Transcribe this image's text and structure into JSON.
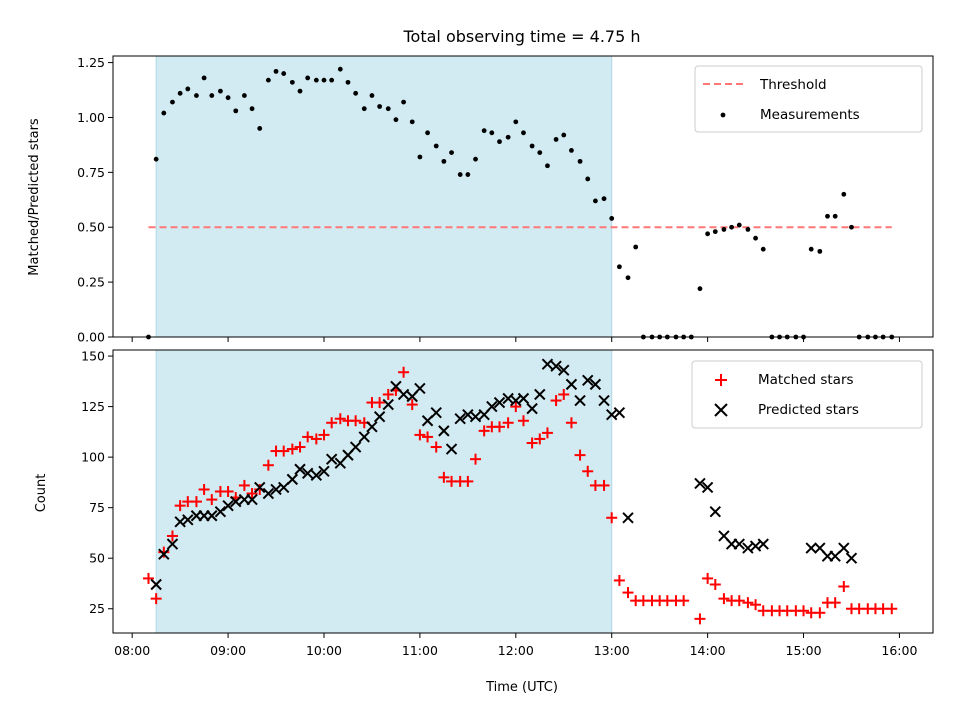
{
  "title": "Total observing time = 4.75 h",
  "colors": {
    "shade": "#add8e6",
    "threshold": "#ff7777",
    "measurement": "#000000",
    "matched": "#ff0000",
    "predicted": "#000000"
  },
  "x_ticks": [
    "08:00",
    "09:00",
    "10:00",
    "11:00",
    "12:00",
    "13:00",
    "14:00",
    "15:00",
    "16:00"
  ],
  "chart_data": [
    {
      "type": "scatter",
      "panel": "top",
      "ylabel": "Matched/Predicted stars",
      "xlabel": "",
      "xlim_hours": [
        7.8,
        16.35
      ],
      "ylim": [
        0,
        1.28
      ],
      "y_ticks": [
        0.0,
        0.25,
        0.5,
        0.75,
        1.0,
        1.25
      ],
      "y_tick_labels": [
        "0.00",
        "0.25",
        "0.50",
        "0.75",
        "1.00",
        "1.25"
      ],
      "shaded_span_hours": [
        8.25,
        13.0
      ],
      "threshold": {
        "label": "Threshold",
        "value": 0.5,
        "x_range_hours": [
          8.17,
          15.92
        ]
      },
      "legend_position": "top-right",
      "series": [
        {
          "name": "Measurements",
          "marker": "dot",
          "points": [
            [
              8.17,
              0.0
            ],
            [
              8.25,
              0.81
            ],
            [
              8.33,
              1.02
            ],
            [
              8.42,
              1.07
            ],
            [
              8.5,
              1.11
            ],
            [
              8.58,
              1.13
            ],
            [
              8.67,
              1.1
            ],
            [
              8.75,
              1.18
            ],
            [
              8.83,
              1.1
            ],
            [
              8.92,
              1.12
            ],
            [
              9.0,
              1.09
            ],
            [
              9.08,
              1.03
            ],
            [
              9.17,
              1.1
            ],
            [
              9.25,
              1.04
            ],
            [
              9.33,
              0.95
            ],
            [
              9.42,
              1.17
            ],
            [
              9.5,
              1.21
            ],
            [
              9.58,
              1.2
            ],
            [
              9.67,
              1.16
            ],
            [
              9.75,
              1.12
            ],
            [
              9.83,
              1.18
            ],
            [
              9.92,
              1.17
            ],
            [
              10.0,
              1.17
            ],
            [
              10.08,
              1.17
            ],
            [
              10.17,
              1.22
            ],
            [
              10.25,
              1.16
            ],
            [
              10.33,
              1.11
            ],
            [
              10.42,
              1.04
            ],
            [
              10.5,
              1.1
            ],
            [
              10.58,
              1.05
            ],
            [
              10.67,
              1.04
            ],
            [
              10.75,
              0.99
            ],
            [
              10.83,
              1.07
            ],
            [
              10.92,
              0.98
            ],
            [
              11.0,
              0.82
            ],
            [
              11.08,
              0.93
            ],
            [
              11.17,
              0.87
            ],
            [
              11.25,
              0.8
            ],
            [
              11.33,
              0.84
            ],
            [
              11.42,
              0.74
            ],
            [
              11.5,
              0.74
            ],
            [
              11.58,
              0.81
            ],
            [
              11.67,
              0.94
            ],
            [
              11.75,
              0.93
            ],
            [
              11.83,
              0.89
            ],
            [
              11.92,
              0.91
            ],
            [
              12.0,
              0.98
            ],
            [
              12.08,
              0.93
            ],
            [
              12.17,
              0.87
            ],
            [
              12.25,
              0.84
            ],
            [
              12.33,
              0.78
            ],
            [
              12.42,
              0.9
            ],
            [
              12.5,
              0.92
            ],
            [
              12.58,
              0.85
            ],
            [
              12.67,
              0.8
            ],
            [
              12.75,
              0.72
            ],
            [
              12.83,
              0.62
            ],
            [
              12.92,
              0.63
            ],
            [
              13.0,
              0.54
            ],
            [
              13.08,
              0.32
            ],
            [
              13.17,
              0.27
            ],
            [
              13.25,
              0.41
            ],
            [
              13.33,
              0.0
            ],
            [
              13.42,
              0.0
            ],
            [
              13.5,
              0.0
            ],
            [
              13.58,
              0.0
            ],
            [
              13.67,
              0.0
            ],
            [
              13.75,
              0.0
            ],
            [
              13.83,
              0.0
            ],
            [
              13.92,
              0.22
            ],
            [
              14.0,
              0.47
            ],
            [
              14.08,
              0.48
            ],
            [
              14.17,
              0.49
            ],
            [
              14.25,
              0.5
            ],
            [
              14.33,
              0.51
            ],
            [
              14.42,
              0.49
            ],
            [
              14.5,
              0.45
            ],
            [
              14.58,
              0.4
            ],
            [
              14.67,
              0.0
            ],
            [
              14.75,
              0.0
            ],
            [
              14.83,
              0.0
            ],
            [
              14.92,
              0.0
            ],
            [
              15.0,
              0.0
            ],
            [
              15.08,
              0.4
            ],
            [
              15.17,
              0.39
            ],
            [
              15.25,
              0.55
            ],
            [
              15.33,
              0.55
            ],
            [
              15.42,
              0.65
            ],
            [
              15.5,
              0.5
            ],
            [
              15.58,
              0.0
            ],
            [
              15.67,
              0.0
            ],
            [
              15.75,
              0.0
            ],
            [
              15.83,
              0.0
            ],
            [
              15.92,
              0.0
            ]
          ]
        }
      ]
    },
    {
      "type": "scatter",
      "panel": "bottom",
      "xlabel": "Time (UTC)",
      "ylabel": "Count",
      "xlim_hours": [
        7.8,
        16.35
      ],
      "ylim": [
        13,
        153
      ],
      "y_ticks": [
        25,
        50,
        75,
        100,
        125,
        150
      ],
      "y_tick_labels": [
        "25",
        "50",
        "75",
        "100",
        "125",
        "150"
      ],
      "shaded_span_hours": [
        8.25,
        13.0
      ],
      "legend_position": "top-right",
      "series": [
        {
          "name": "Matched stars",
          "marker": "plus",
          "points": [
            [
              8.17,
              40
            ],
            [
              8.25,
              30
            ],
            [
              8.33,
              53
            ],
            [
              8.42,
              61
            ],
            [
              8.5,
              76
            ],
            [
              8.58,
              78
            ],
            [
              8.67,
              78
            ],
            [
              8.75,
              84
            ],
            [
              8.83,
              79
            ],
            [
              8.92,
              83
            ],
            [
              9.0,
              83
            ],
            [
              9.08,
              80
            ],
            [
              9.17,
              86
            ],
            [
              9.25,
              82
            ],
            [
              9.33,
              84
            ],
            [
              9.42,
              96
            ],
            [
              9.5,
              103
            ],
            [
              9.58,
              103
            ],
            [
              9.67,
              104
            ],
            [
              9.75,
              105
            ],
            [
              9.83,
              110
            ],
            [
              9.92,
              109
            ],
            [
              10.0,
              111
            ],
            [
              10.08,
              117
            ],
            [
              10.17,
              119
            ],
            [
              10.25,
              118
            ],
            [
              10.33,
              118
            ],
            [
              10.42,
              117
            ],
            [
              10.5,
              127
            ],
            [
              10.58,
              127
            ],
            [
              10.67,
              131
            ],
            [
              10.75,
              133
            ],
            [
              10.83,
              142
            ],
            [
              10.92,
              126
            ],
            [
              11.0,
              111
            ],
            [
              11.08,
              110
            ],
            [
              11.17,
              105
            ],
            [
              11.25,
              90
            ],
            [
              11.33,
              88
            ],
            [
              11.42,
              88
            ],
            [
              11.5,
              88
            ],
            [
              11.58,
              99
            ],
            [
              11.67,
              113
            ],
            [
              11.75,
              115
            ],
            [
              11.83,
              115
            ],
            [
              11.92,
              117
            ],
            [
              12.0,
              125
            ],
            [
              12.08,
              118
            ],
            [
              12.17,
              107
            ],
            [
              12.25,
              109
            ],
            [
              12.33,
              112
            ],
            [
              12.42,
              128
            ],
            [
              12.5,
              131
            ],
            [
              12.58,
              117
            ],
            [
              12.67,
              101
            ],
            [
              12.75,
              93
            ],
            [
              12.83,
              86
            ],
            [
              12.92,
              86
            ],
            [
              13.0,
              70
            ],
            [
              13.08,
              39
            ],
            [
              13.17,
              33
            ],
            [
              13.25,
              29
            ],
            [
              13.33,
              29
            ],
            [
              13.42,
              29
            ],
            [
              13.5,
              29
            ],
            [
              13.58,
              29
            ],
            [
              13.67,
              29
            ],
            [
              13.75,
              29
            ],
            [
              13.92,
              20
            ],
            [
              14.0,
              40
            ],
            [
              14.08,
              37
            ],
            [
              14.17,
              30
            ],
            [
              14.25,
              29
            ],
            [
              14.33,
              29
            ],
            [
              14.42,
              28
            ],
            [
              14.5,
              27
            ],
            [
              14.58,
              24
            ],
            [
              14.67,
              24
            ],
            [
              14.75,
              24
            ],
            [
              14.83,
              24
            ],
            [
              14.92,
              24
            ],
            [
              15.0,
              24
            ],
            [
              15.08,
              23
            ],
            [
              15.17,
              23
            ],
            [
              15.25,
              28
            ],
            [
              15.33,
              28
            ],
            [
              15.42,
              36
            ],
            [
              15.5,
              25
            ],
            [
              15.58,
              25
            ],
            [
              15.67,
              25
            ],
            [
              15.75,
              25
            ],
            [
              15.83,
              25
            ],
            [
              15.92,
              25
            ]
          ]
        },
        {
          "name": "Predicted stars",
          "marker": "x",
          "points": [
            [
              8.25,
              37
            ],
            [
              8.33,
              52
            ],
            [
              8.42,
              57
            ],
            [
              8.5,
              68
            ],
            [
              8.58,
              69
            ],
            [
              8.67,
              71
            ],
            [
              8.75,
              71
            ],
            [
              8.83,
              71
            ],
            [
              8.92,
              73
            ],
            [
              9.0,
              76
            ],
            [
              9.08,
              78
            ],
            [
              9.17,
              79
            ],
            [
              9.25,
              79
            ],
            [
              9.33,
              85
            ],
            [
              9.42,
              82
            ],
            [
              9.5,
              84
            ],
            [
              9.58,
              85
            ],
            [
              9.67,
              89
            ],
            [
              9.75,
              94
            ],
            [
              9.83,
              92
            ],
            [
              9.92,
              91
            ],
            [
              10.0,
              93
            ],
            [
              10.08,
              99
            ],
            [
              10.17,
              97
            ],
            [
              10.25,
              101
            ],
            [
              10.33,
              105
            ],
            [
              10.42,
              110
            ],
            [
              10.5,
              115
            ],
            [
              10.58,
              120
            ],
            [
              10.67,
              126
            ],
            [
              10.75,
              135
            ],
            [
              10.83,
              131
            ],
            [
              10.92,
              130
            ],
            [
              11.0,
              134
            ],
            [
              11.08,
              118
            ],
            [
              11.17,
              122
            ],
            [
              11.25,
              113
            ],
            [
              11.33,
              104
            ],
            [
              11.42,
              119
            ],
            [
              11.5,
              121
            ],
            [
              11.58,
              120
            ],
            [
              11.67,
              121
            ],
            [
              11.75,
              125
            ],
            [
              11.83,
              127
            ],
            [
              11.92,
              129
            ],
            [
              12.0,
              128
            ],
            [
              12.08,
              129
            ],
            [
              12.17,
              124
            ],
            [
              12.25,
              131
            ],
            [
              12.33,
              146
            ],
            [
              12.42,
              145
            ],
            [
              12.5,
              143
            ],
            [
              12.58,
              136
            ],
            [
              12.67,
              128
            ],
            [
              12.75,
              138
            ],
            [
              12.83,
              136
            ],
            [
              12.92,
              128
            ],
            [
              13.0,
              121
            ],
            [
              13.08,
              122
            ],
            [
              13.17,
              70
            ],
            [
              13.92,
              87
            ],
            [
              14.0,
              85
            ],
            [
              14.08,
              73
            ],
            [
              14.17,
              61
            ],
            [
              14.25,
              57
            ],
            [
              14.33,
              57
            ],
            [
              14.42,
              55
            ],
            [
              14.5,
              56
            ],
            [
              14.58,
              57
            ],
            [
              15.08,
              55
            ],
            [
              15.17,
              55
            ],
            [
              15.25,
              51
            ],
            [
              15.33,
              51
            ],
            [
              15.42,
              55
            ],
            [
              15.5,
              50
            ]
          ]
        }
      ]
    }
  ]
}
